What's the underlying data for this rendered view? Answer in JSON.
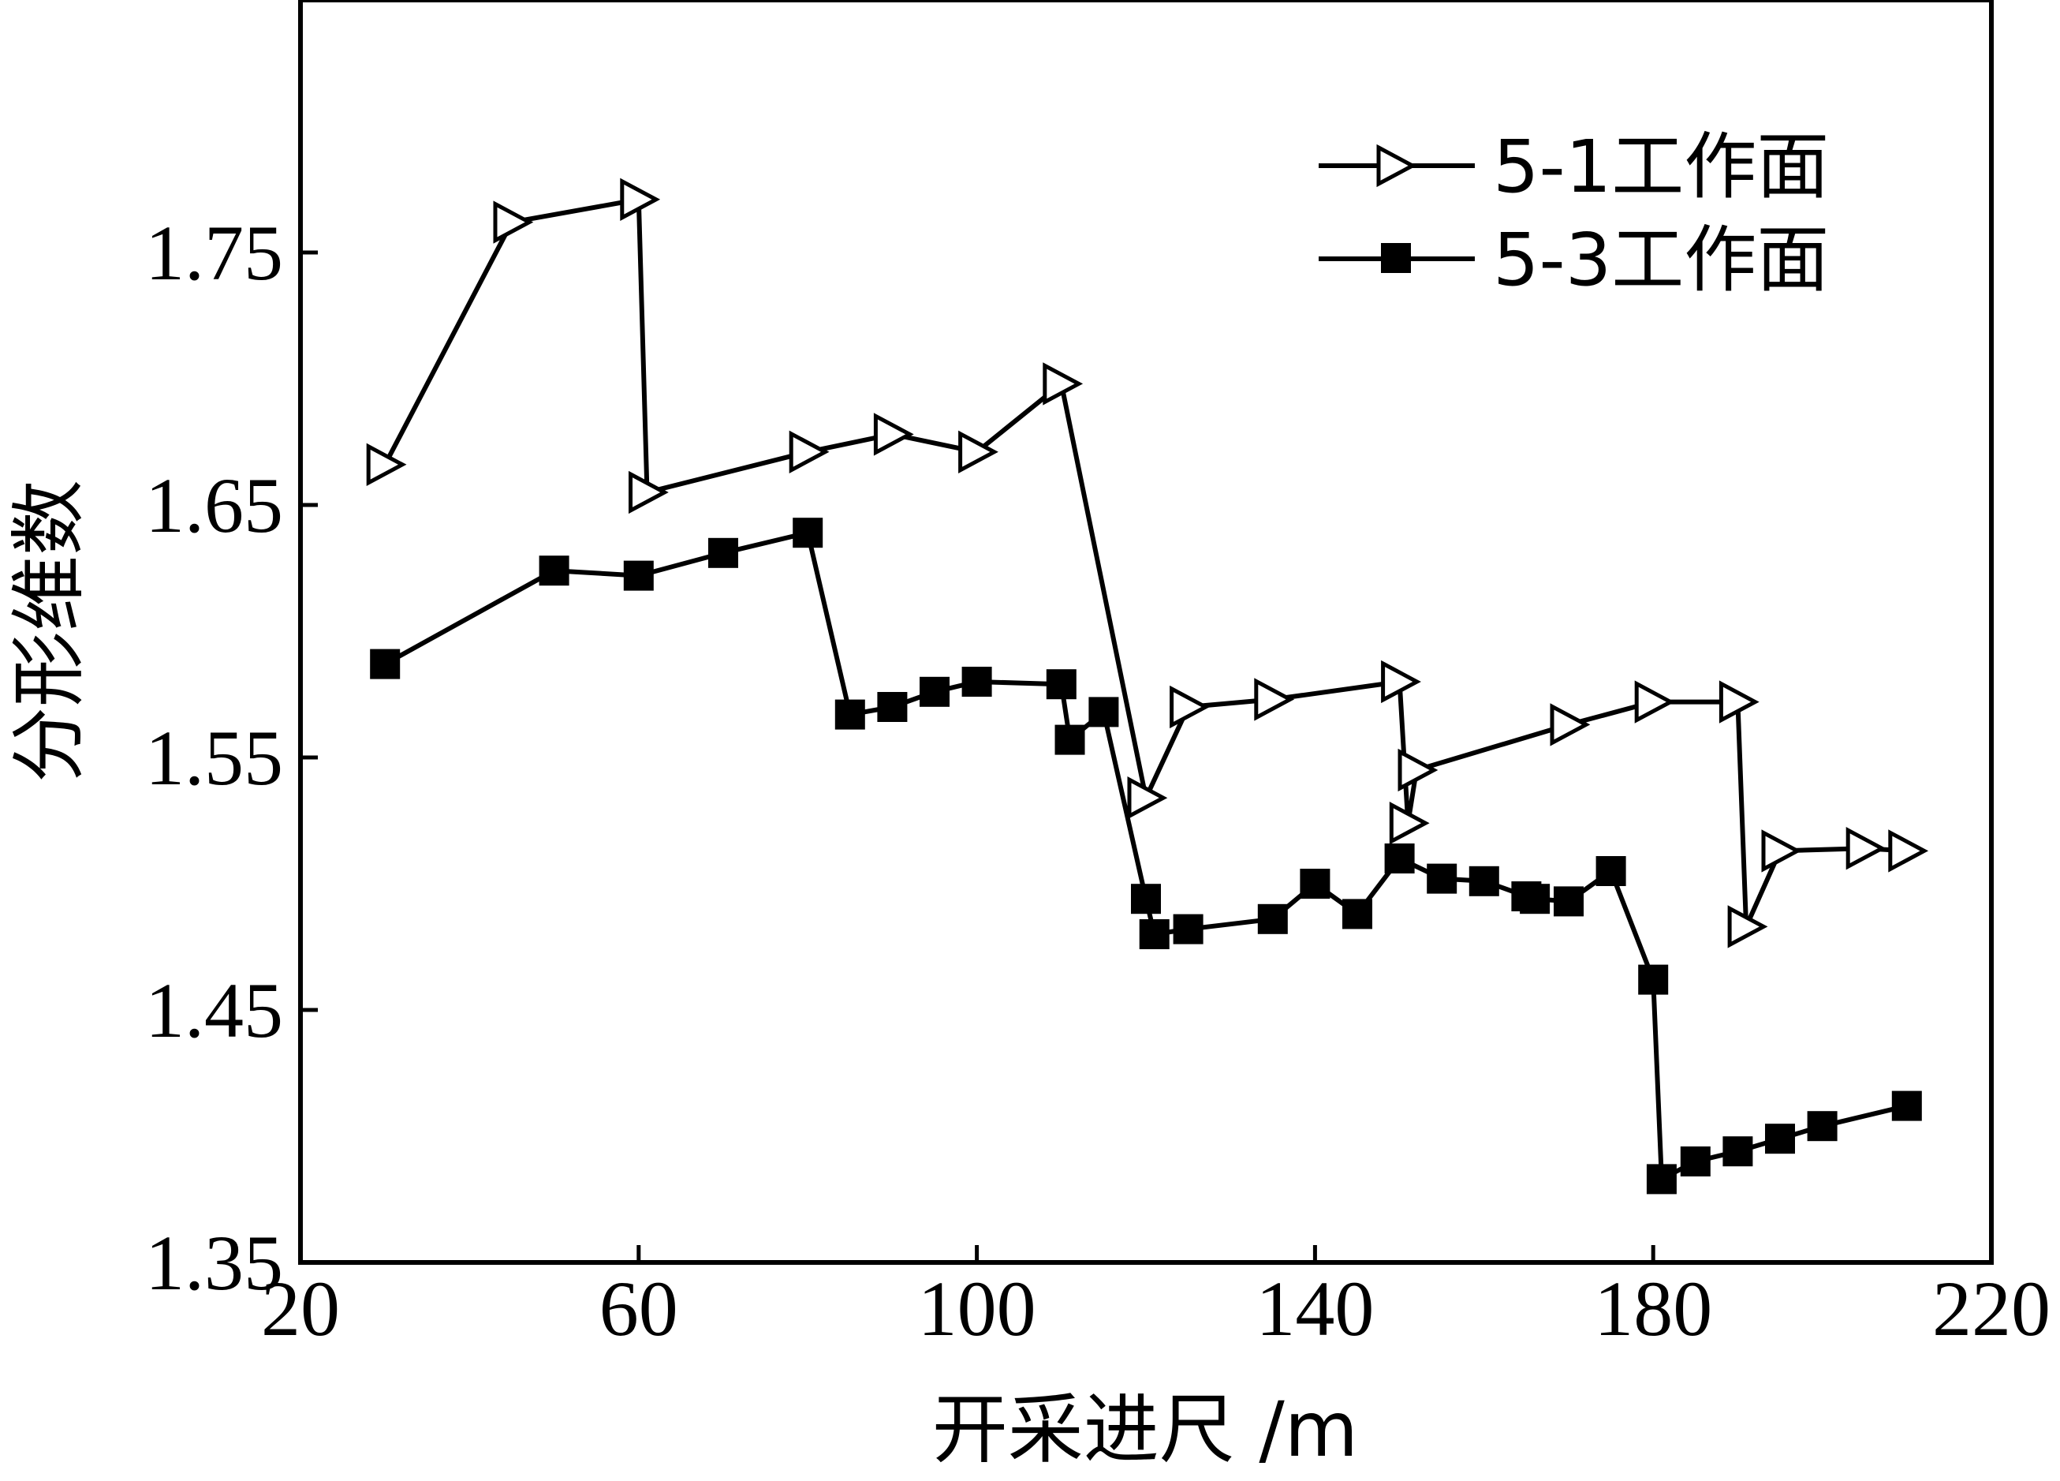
{
  "chart_data": {
    "type": "line",
    "title": "",
    "xlabel": "开采进尺 /m",
    "ylabel": "分形维数",
    "xlim": [
      20,
      220
    ],
    "ylim": [
      1.35,
      1.85
    ],
    "xticks": [
      20,
      60,
      100,
      140,
      180,
      220
    ],
    "xtick_labels": [
      "20",
      "60",
      "100",
      "140",
      "180",
      "220"
    ],
    "yticks": [
      1.35,
      1.45,
      1.55,
      1.65,
      1.75
    ],
    "ytick_labels": [
      "1.35",
      "1.45",
      "1.55",
      "1.65",
      "1.75"
    ],
    "grid": false,
    "legend_position": "top-right",
    "series": [
      {
        "name": "5-1工作面",
        "marker": "triangle-right-open",
        "color": "#000000",
        "points": [
          [
            30,
            1.666
          ],
          [
            45,
            1.762
          ],
          [
            60,
            1.771
          ],
          [
            61,
            1.655
          ],
          [
            80,
            1.671
          ],
          [
            90,
            1.678
          ],
          [
            100,
            1.671
          ],
          [
            110,
            1.698
          ],
          [
            120,
            1.534
          ],
          [
            125,
            1.57
          ],
          [
            135,
            1.573
          ],
          [
            150,
            1.58
          ],
          [
            151,
            1.524
          ],
          [
            152,
            1.545
          ],
          [
            170,
            1.563
          ],
          [
            180,
            1.572
          ],
          [
            190,
            1.572
          ],
          [
            191,
            1.483
          ],
          [
            195,
            1.513
          ],
          [
            205,
            1.514
          ],
          [
            210,
            1.513
          ]
        ]
      },
      {
        "name": "5-3工作面",
        "marker": "square-filled",
        "color": "#000000",
        "points": [
          [
            30,
            1.587
          ],
          [
            50,
            1.624
          ],
          [
            60,
            1.622
          ],
          [
            70,
            1.631
          ],
          [
            80,
            1.639
          ],
          [
            85,
            1.567
          ],
          [
            90,
            1.57
          ],
          [
            95,
            1.576
          ],
          [
            100,
            1.58
          ],
          [
            110,
            1.579
          ],
          [
            111,
            1.557
          ],
          [
            115,
            1.568
          ],
          [
            120,
            1.494
          ],
          [
            121,
            1.48
          ],
          [
            125,
            1.482
          ],
          [
            135,
            1.486
          ],
          [
            140,
            1.5
          ],
          [
            145,
            1.488
          ],
          [
            150,
            1.51
          ],
          [
            155,
            1.502
          ],
          [
            160,
            1.501
          ],
          [
            165,
            1.495
          ],
          [
            166,
            1.494
          ],
          [
            170,
            1.493
          ],
          [
            175,
            1.505
          ],
          [
            180,
            1.462
          ],
          [
            181,
            1.383
          ],
          [
            185,
            1.39
          ],
          [
            190,
            1.394
          ],
          [
            195,
            1.399
          ],
          [
            200,
            1.404
          ],
          [
            210,
            1.412
          ]
        ]
      }
    ]
  }
}
